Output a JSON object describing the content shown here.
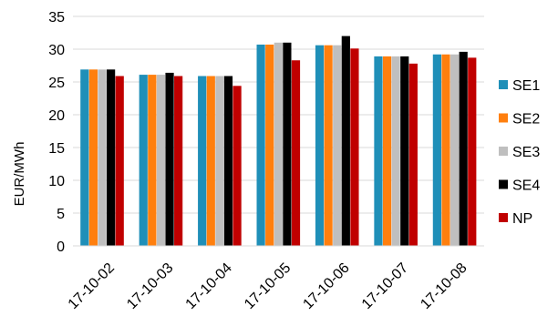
{
  "chart_data": {
    "type": "bar",
    "ylabel": "EUR/MWh",
    "ylim": [
      0,
      35
    ],
    "yticks": [
      0,
      5,
      10,
      15,
      20,
      25,
      30,
      35
    ],
    "grid": true,
    "legend_position": "right",
    "categories": [
      "17-10-02",
      "17-10-03",
      "17-10-04",
      "17-10-05",
      "17-10-06",
      "17-10-07",
      "17-10-08"
    ],
    "series": [
      {
        "name": "SE1",
        "color": "#1f8fb8",
        "values": [
          26.9,
          26.1,
          25.9,
          30.7,
          30.6,
          28.9,
          29.2
        ]
      },
      {
        "name": "SE2",
        "color": "#ff7f0e",
        "values": [
          26.9,
          26.1,
          25.9,
          30.7,
          30.6,
          28.9,
          29.2
        ]
      },
      {
        "name": "SE3",
        "color": "#bfbfbf",
        "values": [
          26.9,
          26.1,
          25.9,
          31.0,
          30.6,
          28.9,
          29.2
        ]
      },
      {
        "name": "SE4",
        "color": "#000000",
        "values": [
          26.9,
          26.4,
          25.9,
          31.0,
          32.0,
          28.9,
          29.6
        ]
      },
      {
        "name": "NP",
        "color": "#c00000",
        "values": [
          25.9,
          25.9,
          24.4,
          28.3,
          30.1,
          27.8,
          28.7
        ]
      }
    ]
  }
}
